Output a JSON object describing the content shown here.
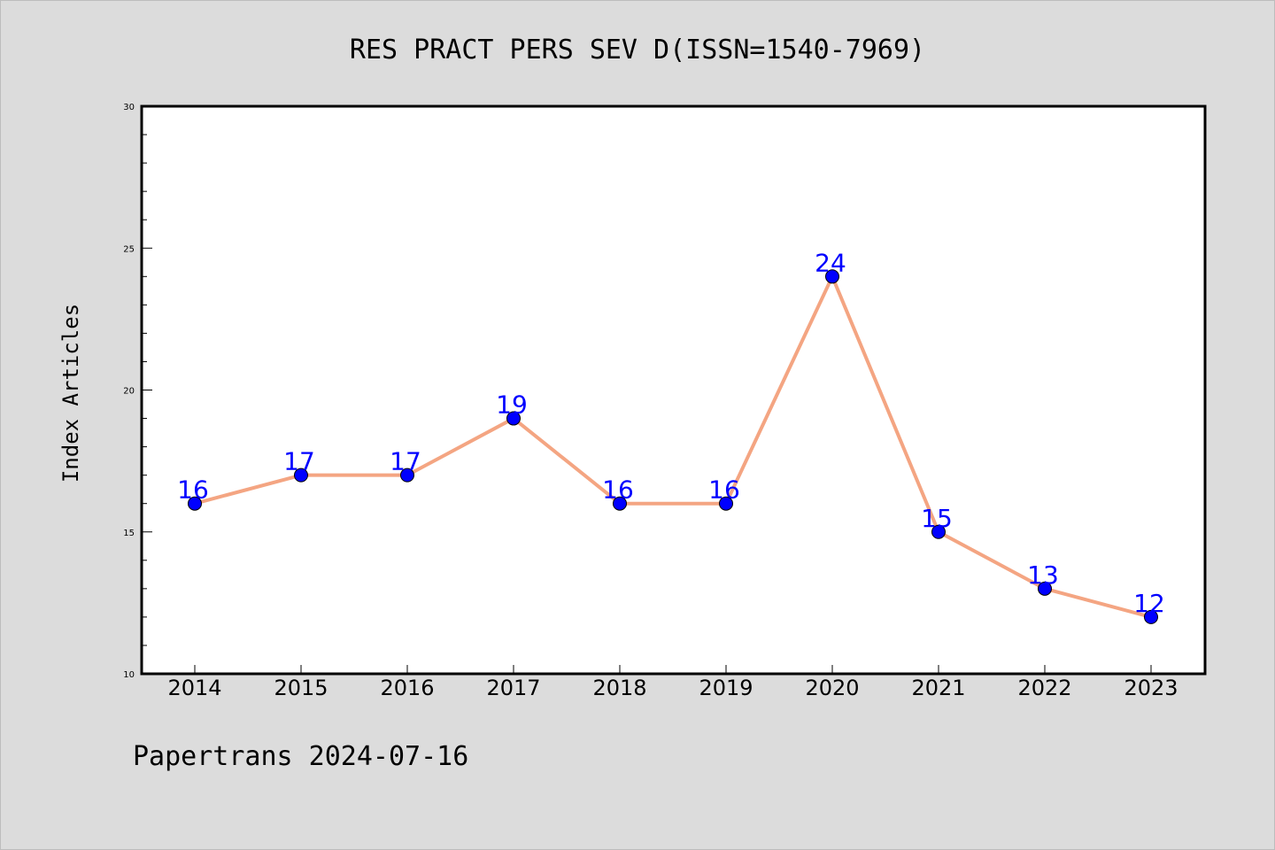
{
  "chart_data": {
    "type": "line",
    "title": "RES PRACT PERS SEV D(ISSN=1540-7969)",
    "ylabel": "Index Articles",
    "xlabel": "",
    "categories": [
      "2014",
      "2015",
      "2016",
      "2017",
      "2018",
      "2019",
      "2020",
      "2021",
      "2022",
      "2023"
    ],
    "values": [
      16,
      17,
      17,
      19,
      16,
      16,
      24,
      15,
      13,
      12
    ],
    "ylim": [
      10,
      30
    ],
    "y_major_ticks": [
      10,
      15,
      20,
      25,
      30
    ],
    "y_minor_step": 1,
    "grid": false,
    "legend": "none",
    "colors": {
      "line": "#f4a582",
      "marker": "#0000ff",
      "data_label": "#0000ff",
      "background": "#dcdcdc",
      "plot_area": "#ffffff"
    }
  },
  "footer": "Papertrans 2024-07-16"
}
